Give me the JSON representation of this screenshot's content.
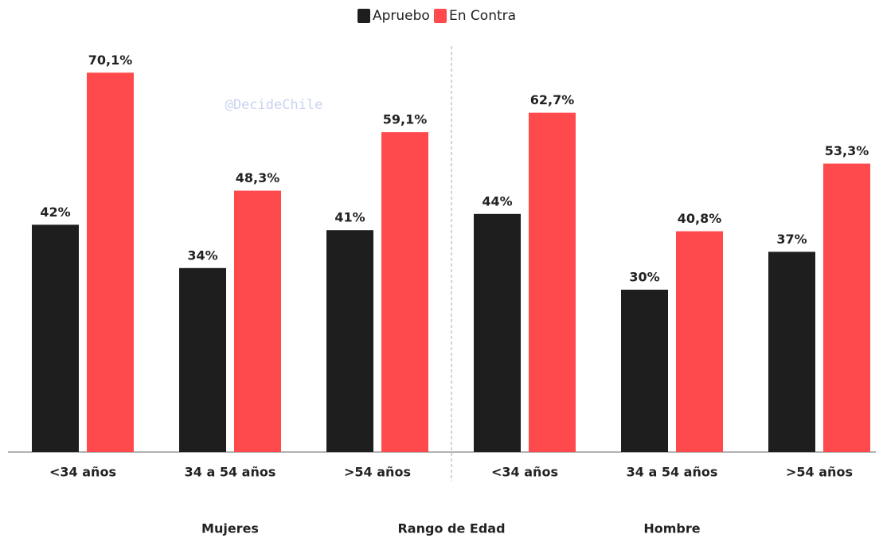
{
  "chart_data": {
    "type": "bar",
    "categories": [
      "<34 años",
      "34 a 54 años",
      ">54 años",
      "<34 años",
      "34 a 54 años",
      ">54 años"
    ],
    "series": [
      {
        "name": "Apruebo",
        "color": "#1e1e1e",
        "values": [
          42,
          34,
          41,
          44,
          30,
          37
        ],
        "value_labels": [
          "42%",
          "34%",
          "41%",
          "44%",
          "30%",
          "37%"
        ]
      },
      {
        "name": "En Contra",
        "color": "#ff4a4d",
        "values": [
          70.1,
          48.3,
          59.1,
          62.7,
          40.8,
          53.3
        ],
        "value_labels": [
          "70,1%",
          "48,3%",
          "59,1%",
          "62,7%",
          "40,8%",
          "53,3%"
        ]
      }
    ],
    "groups": [
      "Mujeres",
      "Hombre"
    ],
    "xlabel": "Rango de Edad",
    "annotation": "@DecideChile",
    "ylim": [
      0,
      80
    ],
    "legend": "top"
  }
}
